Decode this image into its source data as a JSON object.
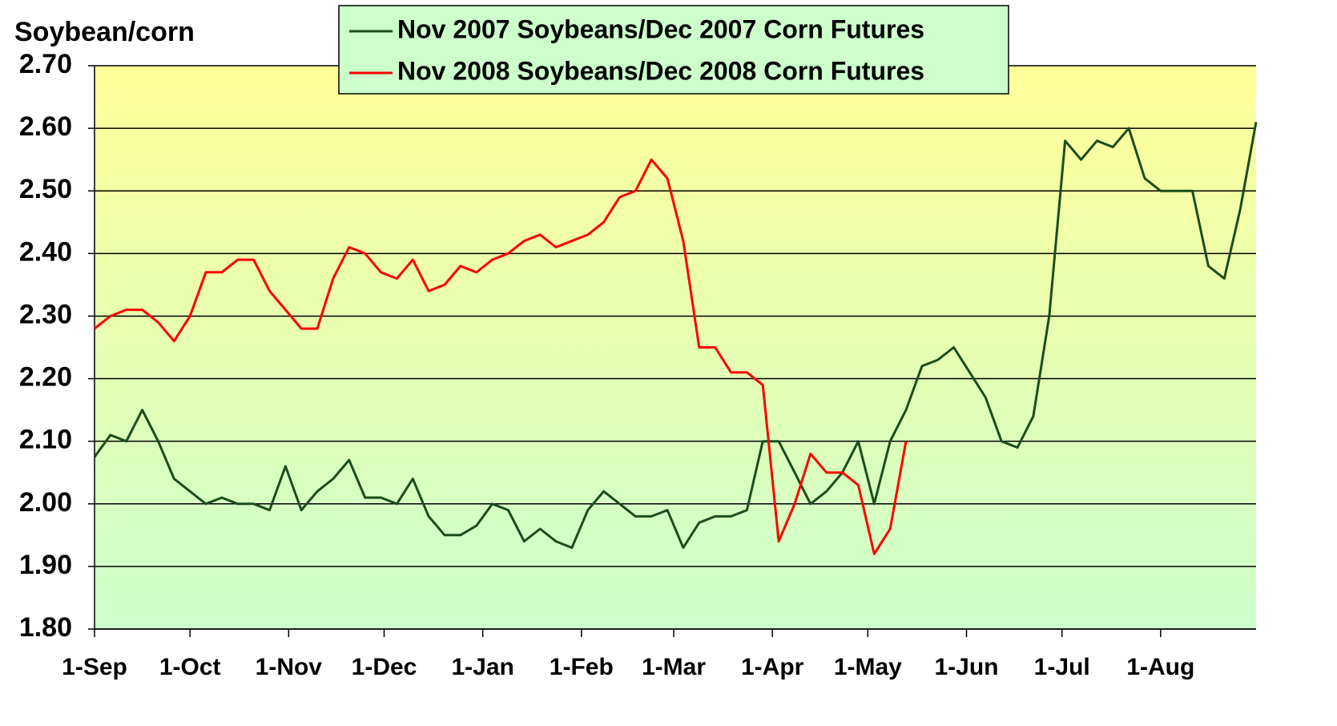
{
  "chart_data": {
    "type": "line",
    "y_label": "Soybean/corn",
    "x": [
      0,
      5,
      10,
      15,
      20,
      25,
      30,
      35,
      40,
      45,
      50,
      55,
      60,
      65,
      70,
      75,
      80,
      85,
      90,
      95,
      100,
      105,
      110,
      115,
      120,
      125,
      130,
      135,
      140,
      145,
      150,
      155,
      160,
      165,
      170,
      175,
      180,
      185,
      190,
      195,
      200,
      205,
      210,
      215,
      220,
      225,
      230,
      235,
      240,
      245,
      250,
      255,
      260,
      265,
      270,
      275,
      280,
      285,
      290,
      295,
      300,
      305,
      310,
      315,
      320,
      325,
      330,
      335,
      340,
      345,
      350,
      355,
      360,
      365
    ],
    "series": [
      {
        "name": "Nov 2007 Soybeans/Dec 2007 Corn Futures",
        "color": "#1b4d1b",
        "values": [
          2.075,
          2.11,
          2.1,
          2.15,
          2.1,
          2.04,
          2.02,
          2.0,
          2.01,
          2.0,
          2.0,
          1.99,
          2.06,
          1.99,
          2.02,
          2.04,
          2.07,
          2.01,
          2.01,
          2.0,
          2.04,
          1.98,
          1.95,
          1.95,
          1.965,
          2.0,
          1.99,
          1.94,
          1.96,
          1.94,
          1.93,
          1.99,
          2.02,
          2.0,
          1.98,
          1.98,
          1.99,
          1.93,
          1.97,
          1.98,
          1.98,
          1.99,
          2.1,
          2.1,
          2.05,
          2.0,
          2.02,
          2.05,
          2.1,
          2.0,
          2.1,
          2.15,
          2.22,
          2.23,
          2.25,
          2.21,
          2.17,
          2.1,
          2.09,
          2.14,
          2.3,
          2.58,
          2.55,
          2.58,
          2.57,
          2.6,
          2.52,
          2.5,
          2.5,
          2.5,
          2.38,
          2.36,
          2.47,
          2.61
        ]
      },
      {
        "name": "Nov 2008 Soybeans/Dec 2008 Corn Futures",
        "color": "#ff0000",
        "values": [
          2.28,
          2.3,
          2.31,
          2.31,
          2.29,
          2.26,
          2.3,
          2.37,
          2.37,
          2.39,
          2.39,
          2.34,
          2.31,
          2.28,
          2.28,
          2.36,
          2.41,
          2.4,
          2.37,
          2.36,
          2.39,
          2.34,
          2.35,
          2.38,
          2.37,
          2.39,
          2.4,
          2.42,
          2.43,
          2.41,
          2.42,
          2.43,
          2.45,
          2.49,
          2.5,
          2.55,
          2.52,
          2.42,
          2.25,
          2.25,
          2.21,
          2.21,
          2.19,
          1.94,
          2.0,
          2.08,
          2.05,
          2.05,
          2.03,
          1.92,
          1.96,
          2.1,
          null,
          null,
          null,
          null,
          null,
          null,
          null,
          null,
          null,
          null,
          null,
          null,
          null,
          null,
          null,
          null,
          null,
          null,
          null,
          null,
          null,
          null
        ]
      }
    ],
    "xlim": [
      0,
      365
    ],
    "xticks": [
      {
        "value": 0,
        "label": "1-Sep"
      },
      {
        "value": 30,
        "label": "1-Oct"
      },
      {
        "value": 61,
        "label": "1-Nov"
      },
      {
        "value": 91,
        "label": "1-Dec"
      },
      {
        "value": 122,
        "label": "1-Jan"
      },
      {
        "value": 153,
        "label": "1-Feb"
      },
      {
        "value": 182,
        "label": "1-Mar"
      },
      {
        "value": 213,
        "label": "1-Apr"
      },
      {
        "value": 243,
        "label": "1-May"
      },
      {
        "value": 274,
        "label": "1-Jun"
      },
      {
        "value": 304,
        "label": "1-Jul"
      },
      {
        "value": 335,
        "label": "1-Aug"
      }
    ],
    "ylim": [
      1.8,
      2.7
    ],
    "yticks": [
      {
        "value": 1.8,
        "label": "1.80"
      },
      {
        "value": 1.9,
        "label": "1.90"
      },
      {
        "value": 2.0,
        "label": "2.00"
      },
      {
        "value": 2.1,
        "label": "2.10"
      },
      {
        "value": 2.2,
        "label": "2.20"
      },
      {
        "value": 2.3,
        "label": "2.30"
      },
      {
        "value": 2.4,
        "label": "2.40"
      },
      {
        "value": 2.5,
        "label": "2.50"
      },
      {
        "value": 2.6,
        "label": "2.60"
      },
      {
        "value": 2.7,
        "label": "2.70"
      }
    ],
    "grid": true
  }
}
